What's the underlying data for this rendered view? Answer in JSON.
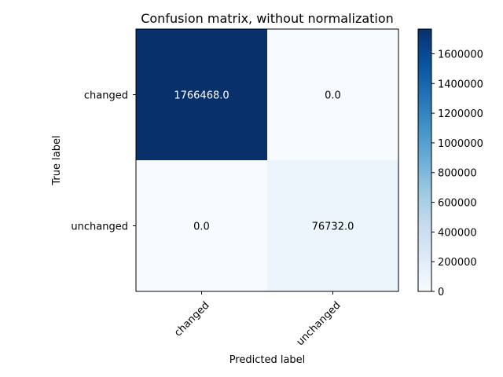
{
  "chart_data": {
    "type": "heatmap",
    "title": "Confusion matrix, without normalization",
    "xlabel": "Predicted label",
    "ylabel": "True label",
    "x_categories": [
      "changed",
      "unchanged"
    ],
    "y_categories": [
      "changed",
      "unchanged"
    ],
    "values": [
      [
        1766468.0,
        0.0
      ],
      [
        0.0,
        76732.0
      ]
    ],
    "cell_labels": [
      [
        "1766468.0",
        "0.0"
      ],
      [
        "0.0",
        "76732.0"
      ]
    ],
    "colormap": "Blues",
    "colorbar": {
      "vmin": 0,
      "vmax": 1766468,
      "ticks": [
        0,
        200000,
        400000,
        600000,
        800000,
        1000000,
        1200000,
        1400000,
        1600000
      ],
      "tick_labels": [
        "0",
        "200000",
        "400000",
        "600000",
        "800000",
        "1000000",
        "1200000",
        "1400000",
        "1600000"
      ]
    },
    "text_colors": {
      "dark": "#ffffff",
      "light": "#000000"
    }
  }
}
